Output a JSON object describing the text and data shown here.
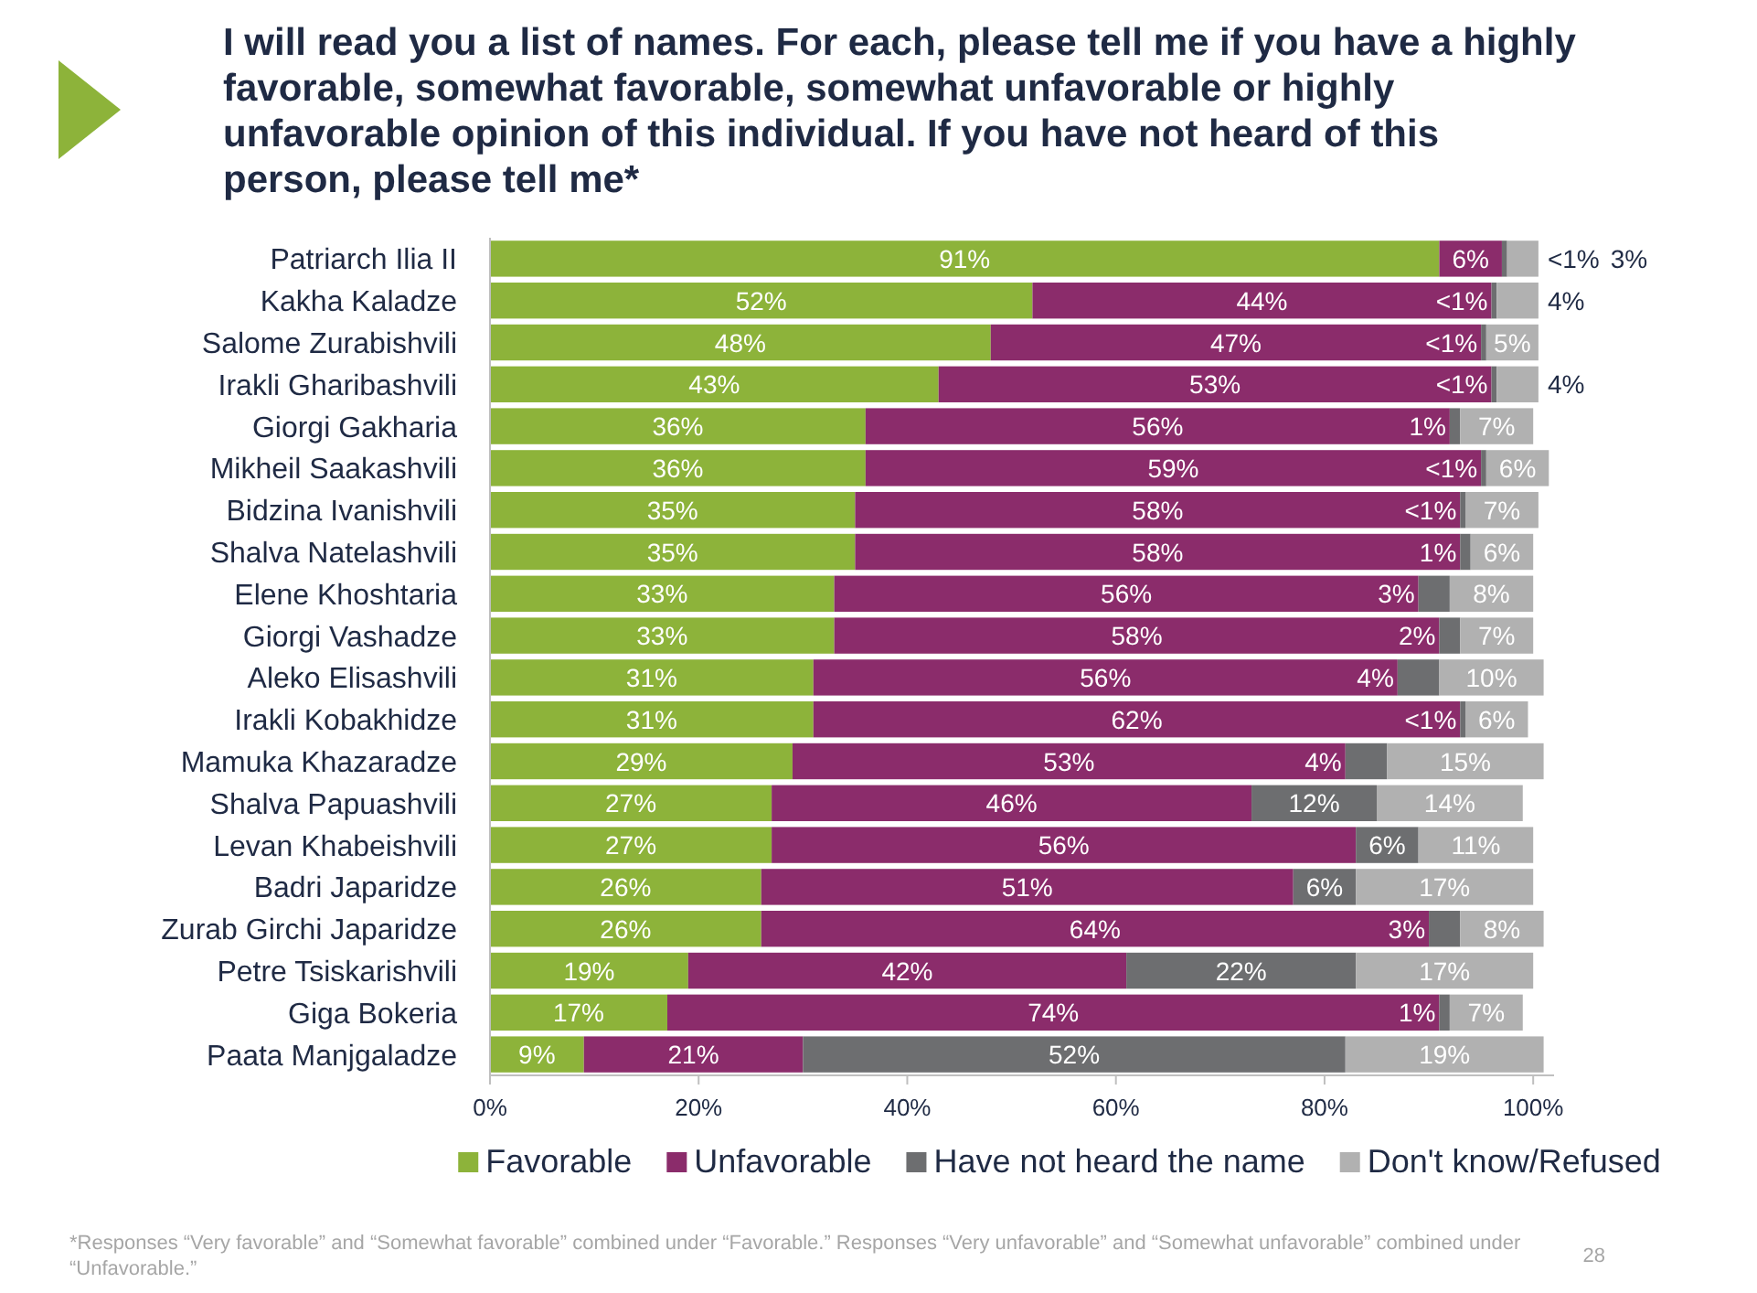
{
  "chart_data": {
    "type": "bar",
    "orientation": "horizontal",
    "stacked": true,
    "title": "I will read you a list of names. For each, please tell me if you have a highly favorable, somewhat favorable, somewhat unfavorable or highly unfavorable opinion of this individual. If you have not heard of this person, please tell me*",
    "categories": [
      "Patriarch Ilia II",
      "Kakha Kaladze",
      "Salome Zurabishvili",
      "Irakli Gharibashvili",
      "Giorgi Gakharia",
      "Mikheil Saakashvili",
      "Bidzina Ivanishvili",
      "Shalva Natelashvili",
      "Elene Khoshtaria",
      "Giorgi Vashadze",
      "Aleko Elisashvili",
      "Irakli Kobakhidze",
      "Mamuka Khazaradze",
      "Shalva Papuashvili",
      "Levan Khabeishvili",
      "Badri Japaridze",
      "Zurab Girchi Japaridze",
      "Petre Tsiskarishvili",
      "Giga Bokeria",
      "Paata Manjgaladze"
    ],
    "series": [
      {
        "name": "Favorable",
        "color": "#8db33a",
        "values": [
          91,
          52,
          48,
          43,
          36,
          36,
          35,
          35,
          33,
          33,
          31,
          31,
          29,
          27,
          27,
          26,
          26,
          19,
          17,
          9
        ],
        "value_labels": [
          "91%",
          "52%",
          "48%",
          "43%",
          "36%",
          "36%",
          "35%",
          "35%",
          "33%",
          "33%",
          "31%",
          "31%",
          "29%",
          "27%",
          "27%",
          "26%",
          "26%",
          "19%",
          "17%",
          "9%"
        ]
      },
      {
        "name": "Unfavorable",
        "color": "#8b2c6b",
        "values": [
          6,
          44,
          47,
          53,
          56,
          59,
          58,
          58,
          56,
          58,
          56,
          62,
          53,
          46,
          56,
          51,
          64,
          42,
          74,
          21
        ],
        "value_labels": [
          "6%",
          "44%",
          "47%",
          "53%",
          "56%",
          "59%",
          "58%",
          "58%",
          "56%",
          "58%",
          "56%",
          "62%",
          "53%",
          "46%",
          "56%",
          "51%",
          "64%",
          "42%",
          "74%",
          "21%"
        ]
      },
      {
        "name": "Have not heard the name",
        "color": "#6d6e70",
        "values": [
          0.5,
          0.5,
          0.5,
          0.5,
          1,
          0.5,
          0.5,
          1,
          3,
          2,
          4,
          0.5,
          4,
          12,
          6,
          6,
          3,
          22,
          1,
          52
        ],
        "value_labels": [
          "<1%",
          "<1%",
          "<1%",
          "<1%",
          "1%",
          "<1%",
          "<1%",
          "1%",
          "3%",
          "2%",
          "4%",
          "<1%",
          "4%",
          "12%",
          "6%",
          "6%",
          "3%",
          "22%",
          "1%",
          "52%"
        ]
      },
      {
        "name": "Don't know/Refused",
        "color": "#b1b1b1",
        "values": [
          3,
          4,
          5,
          4,
          7,
          6,
          7,
          6,
          8,
          7,
          10,
          6,
          15,
          14,
          11,
          17,
          8,
          17,
          7,
          19
        ],
        "value_labels": [
          "3%",
          "4%",
          "5%",
          "4%",
          "7%",
          "6%",
          "7%",
          "6%",
          "8%",
          "7%",
          "10%",
          "6%",
          "15%",
          "14%",
          "11%",
          "17%",
          "8%",
          "17%",
          "7%",
          "19%"
        ]
      }
    ],
    "xlim": [
      0,
      102
    ],
    "xticks": [
      {
        "value": 0,
        "label": "0%"
      },
      {
        "value": 20,
        "label": "20%"
      },
      {
        "value": 40,
        "label": "40%"
      },
      {
        "value": 60,
        "label": "60%"
      },
      {
        "value": 80,
        "label": "80%"
      },
      {
        "value": 100,
        "label": "100%"
      }
    ],
    "grid": false,
    "legend": "bottom",
    "annotations": [
      "*Responses “Very favorable” and “Somewhat favorable” combined under “Favorable.” Responses “Very unfavorable” and “Somewhat unfavorable” combined under “Unfavorable.”",
      "28"
    ]
  }
}
